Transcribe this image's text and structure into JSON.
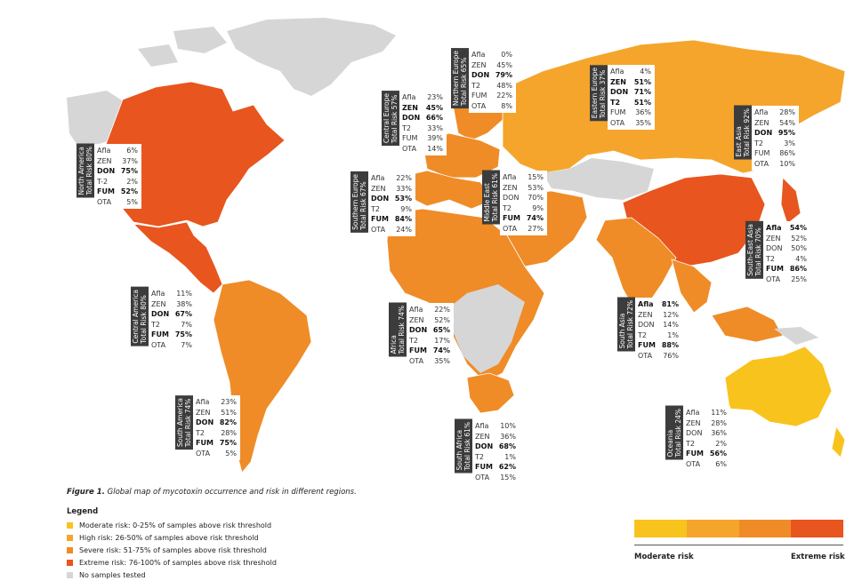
{
  "colors": {
    "moderate": "#f9c31d",
    "high": "#f5a52b",
    "severe": "#ef8c27",
    "extreme": "#e8551e",
    "none": "#d6d6d6"
  },
  "regions": [
    {
      "id": "north-america",
      "name": "North America",
      "total": "Total Risk 80%",
      "color": "#e8551e",
      "stats": [
        {
          "k": "Afla",
          "v": "6%",
          "b": false
        },
        {
          "k": "ZEN",
          "v": "37%",
          "b": false
        },
        {
          "k": "DON",
          "v": "75%",
          "b": true
        },
        {
          "k": "T-2",
          "v": "2%",
          "b": false
        },
        {
          "k": "FUM",
          "v": "52%",
          "b": true
        },
        {
          "k": "OTA",
          "v": "5%",
          "b": false
        }
      ]
    },
    {
      "id": "central-america",
      "name": "Central America",
      "total": "Total Risk 80%",
      "color": "#e8551e",
      "stats": [
        {
          "k": "Afla",
          "v": "11%",
          "b": false
        },
        {
          "k": "ZEN",
          "v": "38%",
          "b": false
        },
        {
          "k": "DON",
          "v": "67%",
          "b": true
        },
        {
          "k": "T2",
          "v": "7%",
          "b": false
        },
        {
          "k": "FUM",
          "v": "75%",
          "b": true
        },
        {
          "k": "OTA",
          "v": "7%",
          "b": false
        }
      ]
    },
    {
      "id": "south-america",
      "name": "South America",
      "total": "Total Risk 74%",
      "color": "#ef8c27",
      "stats": [
        {
          "k": "Afla",
          "v": "23%",
          "b": false
        },
        {
          "k": "ZEN",
          "v": "51%",
          "b": false
        },
        {
          "k": "DON",
          "v": "82%",
          "b": true
        },
        {
          "k": "T2",
          "v": "28%",
          "b": false
        },
        {
          "k": "FUM",
          "v": "75%",
          "b": true
        },
        {
          "k": "OTA",
          "v": "5%",
          "b": false
        }
      ]
    },
    {
      "id": "central-europe",
      "name": "Central Europe",
      "total": "Total Risk 57%",
      "color": "#ef8c27",
      "stats": [
        {
          "k": "Afla",
          "v": "23%",
          "b": false
        },
        {
          "k": "ZEN",
          "v": "45%",
          "b": true
        },
        {
          "k": "DON",
          "v": "66%",
          "b": true
        },
        {
          "k": "T2",
          "v": "33%",
          "b": false
        },
        {
          "k": "FUM",
          "v": "39%",
          "b": false
        },
        {
          "k": "OTA",
          "v": "14%",
          "b": false
        }
      ]
    },
    {
      "id": "northern-europe",
      "name": "Northern Europe",
      "total": "Total Risk 65%",
      "color": "#ef8c27",
      "stats": [
        {
          "k": "Afla",
          "v": "0%",
          "b": false
        },
        {
          "k": "ZEN",
          "v": "45%",
          "b": false
        },
        {
          "k": "DON",
          "v": "79%",
          "b": true
        },
        {
          "k": "T2",
          "v": "48%",
          "b": false
        },
        {
          "k": "FUM",
          "v": "22%",
          "b": false
        },
        {
          "k": "OTA",
          "v": "8%",
          "b": false
        }
      ]
    },
    {
      "id": "eastern-europe",
      "name": "Eastern Europe",
      "total": "Total Risk 37%",
      "color": "#f5a52b",
      "stats": [
        {
          "k": "Afla",
          "v": "4%",
          "b": false
        },
        {
          "k": "ZEN",
          "v": "51%",
          "b": true
        },
        {
          "k": "DON",
          "v": "71%",
          "b": true
        },
        {
          "k": "T2",
          "v": "51%",
          "b": true
        },
        {
          "k": "FUM",
          "v": "36%",
          "b": false
        },
        {
          "k": "OTA",
          "v": "35%",
          "b": false
        }
      ]
    },
    {
      "id": "southern-europe",
      "name": "Southern Europe",
      "total": "Total Risk 67%",
      "color": "#ef8c27",
      "stats": [
        {
          "k": "Afla",
          "v": "22%",
          "b": false
        },
        {
          "k": "ZEN",
          "v": "33%",
          "b": false
        },
        {
          "k": "DON",
          "v": "53%",
          "b": true
        },
        {
          "k": "T2",
          "v": "9%",
          "b": false
        },
        {
          "k": "FUM",
          "v": "84%",
          "b": true
        },
        {
          "k": "OTA",
          "v": "24%",
          "b": false
        }
      ]
    },
    {
      "id": "middle-east",
      "name": "Middle East",
      "total": "Total Risk 61%",
      "color": "#ef8c27",
      "stats": [
        {
          "k": "Afla",
          "v": "15%",
          "b": false
        },
        {
          "k": "ZEN",
          "v": "53%",
          "b": false
        },
        {
          "k": "DON",
          "v": "70%",
          "b": false
        },
        {
          "k": "T2",
          "v": "9%",
          "b": false
        },
        {
          "k": "FUM",
          "v": "74%",
          "b": true
        },
        {
          "k": "OTA",
          "v": "27%",
          "b": false
        }
      ]
    },
    {
      "id": "east-asia",
      "name": "East Asia",
      "total": "Total Risk 92%",
      "color": "#e8551e",
      "stats": [
        {
          "k": "Afla",
          "v": "28%",
          "b": false
        },
        {
          "k": "ZEN",
          "v": "54%",
          "b": false
        },
        {
          "k": "DON",
          "v": "95%",
          "b": true
        },
        {
          "k": "T2",
          "v": "3%",
          "b": false
        },
        {
          "k": "FUM",
          "v": "86%",
          "b": false
        },
        {
          "k": "OTA",
          "v": "10%",
          "b": false
        }
      ]
    },
    {
      "id": "south-east-asia",
      "name": "South-East Asia",
      "total": "Total Risk 70%",
      "color": "#ef8c27",
      "stats": [
        {
          "k": "Afla",
          "v": "54%",
          "b": true
        },
        {
          "k": "ZEN",
          "v": "52%",
          "b": false
        },
        {
          "k": "DON",
          "v": "50%",
          "b": false
        },
        {
          "k": "T2",
          "v": "4%",
          "b": false
        },
        {
          "k": "FUM",
          "v": "86%",
          "b": true
        },
        {
          "k": "OTA",
          "v": "25%",
          "b": false
        }
      ]
    },
    {
      "id": "africa",
      "name": "Africa",
      "total": "Total Risk 74%",
      "color": "#ef8c27",
      "stats": [
        {
          "k": "Afla",
          "v": "22%",
          "b": false
        },
        {
          "k": "ZEN",
          "v": "52%",
          "b": false
        },
        {
          "k": "DON",
          "v": "65%",
          "b": true
        },
        {
          "k": "T2",
          "v": "17%",
          "b": false
        },
        {
          "k": "FUM",
          "v": "74%",
          "b": true
        },
        {
          "k": "OTA",
          "v": "35%",
          "b": false
        }
      ]
    },
    {
      "id": "south-asia",
      "name": "South Asia",
      "total": "Total Risk 72%",
      "color": "#ef8c27",
      "stats": [
        {
          "k": "Afla",
          "v": "81%",
          "b": true
        },
        {
          "k": "ZEN",
          "v": "12%",
          "b": false
        },
        {
          "k": "DON",
          "v": "14%",
          "b": false
        },
        {
          "k": "T2",
          "v": "1%",
          "b": false
        },
        {
          "k": "FUM",
          "v": "88%",
          "b": true
        },
        {
          "k": "OTA",
          "v": "76%",
          "b": false
        }
      ]
    },
    {
      "id": "south-africa",
      "name": "South Africa",
      "total": "Total Risk 61%",
      "color": "#ef8c27",
      "stats": [
        {
          "k": "Afla",
          "v": "10%",
          "b": false
        },
        {
          "k": "ZEN",
          "v": "36%",
          "b": false
        },
        {
          "k": "DON",
          "v": "68%",
          "b": true
        },
        {
          "k": "T2",
          "v": "1%",
          "b": false
        },
        {
          "k": "FUM",
          "v": "62%",
          "b": true
        },
        {
          "k": "OTA",
          "v": "15%",
          "b": false
        }
      ]
    },
    {
      "id": "oceania",
      "name": "Oceania",
      "total": "Total Risk 24%",
      "color": "#f9c31d",
      "stats": [
        {
          "k": "Afla",
          "v": "11%",
          "b": false
        },
        {
          "k": "ZEN",
          "v": "28%",
          "b": false
        },
        {
          "k": "DON",
          "v": "36%",
          "b": false
        },
        {
          "k": "T2",
          "v": "2%",
          "b": false
        },
        {
          "k": "FUM",
          "v": "56%",
          "b": true
        },
        {
          "k": "OTA",
          "v": "6%",
          "b": false
        }
      ]
    }
  ],
  "caption": {
    "label": "Figure 1.",
    "text": " Global map of mycotoxin occurrence and risk in different regions."
  },
  "legend": {
    "title": "Legend",
    "items": [
      {
        "label": "Moderate risk: 0-25% of samples above risk threshold",
        "color": "#f9c31d"
      },
      {
        "label": "High risk: 26-50% of samples above risk threshold",
        "color": "#f5a52b"
      },
      {
        "label": "Severe risk: 51-75% of samples above risk threshold",
        "color": "#ef8c27"
      },
      {
        "label": "Extreme risk: 76-100% of samples above risk threshold",
        "color": "#e8551e"
      },
      {
        "label": "No samples tested",
        "color": "#d6d6d6"
      }
    ]
  },
  "scale": {
    "low": "Moderate risk",
    "high": "Extreme risk"
  }
}
